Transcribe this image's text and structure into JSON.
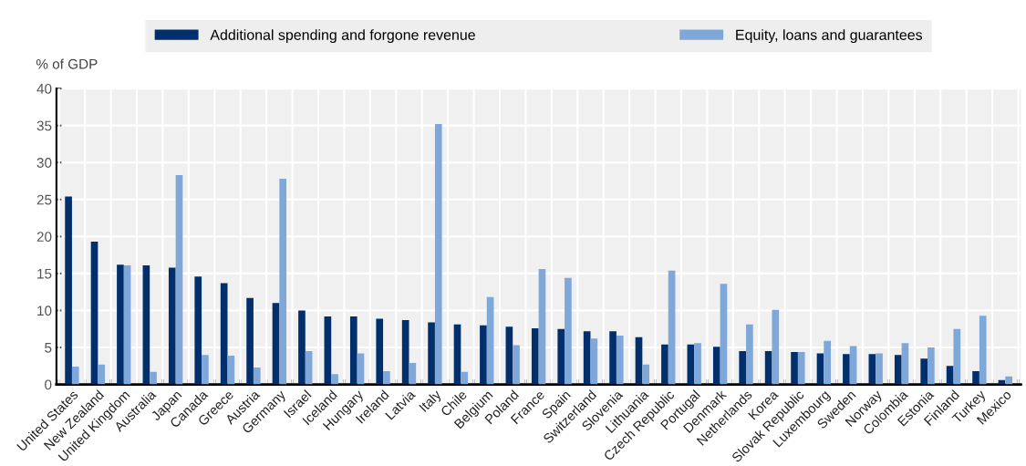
{
  "chart_data": {
    "type": "bar",
    "ylabel": "% of GDP",
    "categories": [
      "United States",
      "New Zealand",
      "United Kingdom",
      "Australia",
      "Japan",
      "Canada",
      "Greece",
      "Austria",
      "Germany",
      "Israel",
      "Iceland",
      "Hungary",
      "Ireland",
      "Latvia",
      "Italy",
      "Chile",
      "Belgium",
      "Poland",
      "France",
      "Spain",
      "Switzerland",
      "Slovenia",
      "Lithuania",
      "Czech Republic",
      "Portugal",
      "Denmark",
      "Netherlands",
      "Korea",
      "Slovak Republic",
      "Luxembourg",
      "Sweden",
      "Norway",
      "Colombia",
      "Estonia",
      "Finland",
      "Turkey",
      "Mexico"
    ],
    "series": [
      {
        "name": "Additional spending and forgone revenue",
        "color": "#002f6c",
        "values": [
          25.4,
          19.3,
          16.2,
          16.1,
          15.8,
          14.6,
          13.7,
          11.7,
          11.0,
          10.0,
          9.2,
          9.2,
          8.9,
          8.7,
          8.4,
          8.1,
          8.0,
          7.8,
          7.6,
          7.5,
          7.2,
          7.2,
          6.4,
          5.4,
          5.4,
          5.1,
          4.5,
          4.5,
          4.4,
          4.2,
          4.1,
          4.1,
          4.0,
          3.5,
          2.5,
          1.8,
          0.6
        ]
      },
      {
        "name": "Equity, loans and guarantees",
        "color": "#7fa8d9",
        "values": [
          2.4,
          2.7,
          16.1,
          1.7,
          28.3,
          4.0,
          3.9,
          2.3,
          27.8,
          4.5,
          1.4,
          4.2,
          1.8,
          2.9,
          35.2,
          1.7,
          11.8,
          5.3,
          15.6,
          14.4,
          6.2,
          6.6,
          2.7,
          15.4,
          5.6,
          13.6,
          8.1,
          10.1,
          4.4,
          5.9,
          5.2,
          4.2,
          5.6,
          5.0,
          7.5,
          9.3,
          1.1
        ]
      }
    ],
    "ylim": [
      0,
      40
    ],
    "yticks": [
      0,
      5,
      10,
      15,
      20,
      25,
      30,
      35,
      40
    ],
    "grid": true,
    "legend": "top"
  }
}
